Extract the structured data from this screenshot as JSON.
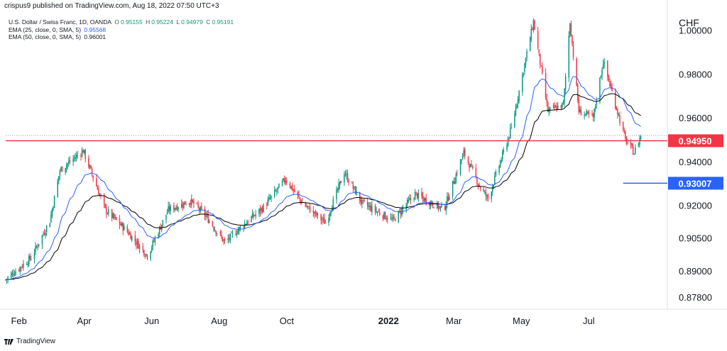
{
  "publisher_line": "crispus9 published on TradingView.com, Aug 18, 2022 07:50 UTC+3",
  "legend": {
    "symbol": "U.S. Dollar / Swiss Franc, 1D, OANDA",
    "ohlc": [
      {
        "label": "O",
        "value": "0.95155"
      },
      {
        "label": "H",
        "value": "0.95224"
      },
      {
        "label": "L",
        "value": "0.94979"
      },
      {
        "label": "C",
        "value": "0.95191"
      }
    ],
    "ema25": {
      "label": "EMA (25, close, 0, SMA, 5)",
      "value": "0.95568"
    },
    "ema50": {
      "label": "EMA (50, close, 0, SMA, 5)",
      "value": "0.96001"
    }
  },
  "footer": {
    "brand": "TradingView"
  },
  "chart_data": {
    "type": "candlestick",
    "symbol": "USDCHF",
    "currency_label": "CHF",
    "y_ticks": [
      "1.00000",
      "0.98000",
      "0.96000",
      "0.94000",
      "0.92000",
      "0.90500",
      "0.89000",
      "0.87800"
    ],
    "y_tick_values": [
      1.0,
      0.98,
      0.96,
      0.94,
      0.92,
      0.905,
      0.89,
      0.878
    ],
    "x_labels": [
      "Feb",
      "Apr",
      "Jun",
      "Aug",
      "Oct",
      "2022",
      "Mar",
      "May",
      "Jul"
    ],
    "x_label_dates": [
      "2021-02-01",
      "2021-04-01",
      "2021-06-01",
      "2021-08-01",
      "2021-10-01",
      "2022-01-01",
      "2022-03-01",
      "2022-05-01",
      "2022-07-01"
    ],
    "x_range": [
      "2021-01-20",
      "2022-09-10"
    ],
    "y_range": [
      0.8725,
      1.008
    ],
    "colors": {
      "up": "#089981",
      "down": "#f23645",
      "ema25": "#2962ff",
      "ema50": "#000000",
      "level_red": "#f23645",
      "level_blue": "#2962ff"
    },
    "series_anchors": [
      {
        "date": "2021-01-20",
        "value": 0.886
      },
      {
        "date": "2021-02-12",
        "value": 0.896
      },
      {
        "date": "2021-03-01",
        "value": 0.913
      },
      {
        "date": "2021-03-10",
        "value": 0.936
      },
      {
        "date": "2021-03-31",
        "value": 0.945
      },
      {
        "date": "2021-04-20",
        "value": 0.918
      },
      {
        "date": "2021-05-10",
        "value": 0.908
      },
      {
        "date": "2021-05-28",
        "value": 0.897
      },
      {
        "date": "2021-06-16",
        "value": 0.918
      },
      {
        "date": "2021-07-06",
        "value": 0.922
      },
      {
        "date": "2021-07-20",
        "value": 0.915
      },
      {
        "date": "2021-08-06",
        "value": 0.903
      },
      {
        "date": "2021-08-25",
        "value": 0.912
      },
      {
        "date": "2021-09-10",
        "value": 0.919
      },
      {
        "date": "2021-09-30",
        "value": 0.932
      },
      {
        "date": "2021-10-15",
        "value": 0.921
      },
      {
        "date": "2021-11-05",
        "value": 0.912
      },
      {
        "date": "2021-11-22",
        "value": 0.935
      },
      {
        "date": "2021-12-08",
        "value": 0.921
      },
      {
        "date": "2022-01-05",
        "value": 0.913
      },
      {
        "date": "2022-01-25",
        "value": 0.925
      },
      {
        "date": "2022-02-20",
        "value": 0.918
      },
      {
        "date": "2022-03-10",
        "value": 0.944
      },
      {
        "date": "2022-03-25",
        "value": 0.928
      },
      {
        "date": "2022-04-01",
        "value": 0.923
      },
      {
        "date": "2022-04-22",
        "value": 0.955
      },
      {
        "date": "2022-05-12",
        "value": 1.004
      },
      {
        "date": "2022-05-25",
        "value": 0.963
      },
      {
        "date": "2022-06-08",
        "value": 0.966
      },
      {
        "date": "2022-06-14",
        "value": 1.004
      },
      {
        "date": "2022-06-22",
        "value": 0.963
      },
      {
        "date": "2022-07-05",
        "value": 0.96
      },
      {
        "date": "2022-07-14",
        "value": 0.986
      },
      {
        "date": "2022-08-03",
        "value": 0.95
      },
      {
        "date": "2022-08-11",
        "value": 0.944
      },
      {
        "date": "2022-08-17",
        "value": 0.9519
      }
    ],
    "horizontal_levels": [
      {
        "label": "0.94950",
        "value": 0.9495,
        "color": "#f23645",
        "from": "2021-01-20",
        "to": "2022-09-10"
      },
      {
        "label": "0.93007",
        "value": 0.93007,
        "color": "#2962ff",
        "from": "2022-08-01",
        "to": "2022-09-10"
      }
    ],
    "last_price_dotted": 0.9519
  }
}
